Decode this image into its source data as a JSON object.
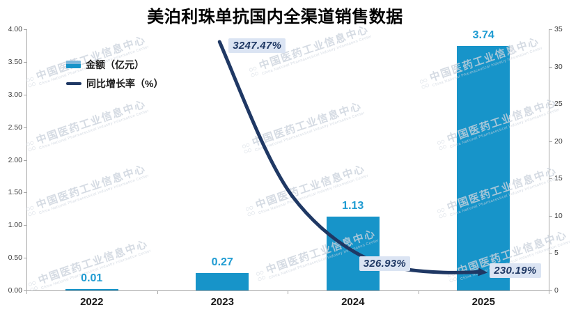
{
  "title": "美泊利珠单抗国内全渠道销售数据",
  "chart_data": {
    "type": "bar",
    "subtype": "combo-bar-line",
    "title": "美泊利珠单抗国内全渠道销售数据",
    "categories": [
      "2022",
      "2023",
      "2024",
      "2025"
    ],
    "series": [
      {
        "name": "金额（亿元）",
        "chart_type": "bar",
        "axis": "left",
        "values": [
          0.01,
          0.27,
          1.13,
          3.74
        ],
        "data_labels": [
          "0.01",
          "0.27",
          "1.13",
          "3.74"
        ]
      },
      {
        "name": "同比增长率（%）",
        "chart_type": "line",
        "axis": "right",
        "values": [
          null,
          3247.47,
          326.93,
          230.19
        ],
        "data_labels": [
          null,
          "3247.47%",
          "326.93%",
          "230.19%"
        ]
      }
    ],
    "left_axis": {
      "min": 0,
      "max": 4,
      "tick_labels": [
        "0.00",
        "0.50",
        "1.00",
        "1.50",
        "2.00",
        "2.50",
        "3.00",
        "3.50",
        "4.00"
      ]
    },
    "right_axis": {
      "min": 0,
      "max": 35,
      "tick_labels": [
        "0",
        "5",
        "10",
        "15",
        "20",
        "25",
        "30",
        "35"
      ]
    },
    "grid": false,
    "legend_position": "top-left"
  },
  "watermark": {
    "logo": "○○\n○○",
    "cn": "中国医药工业信息中心",
    "en": "China National Pharmaceutical Industry Information Center"
  },
  "colors": {
    "bar": "#1794c9",
    "bar_label": "#1e9bd2",
    "line": "#1f3864",
    "pct_label_bg": "#dbe4f3",
    "pct_label_text": "#1f3864",
    "axis": "#a6a6a6",
    "watermark": "rgba(203,210,220,0.8)"
  }
}
